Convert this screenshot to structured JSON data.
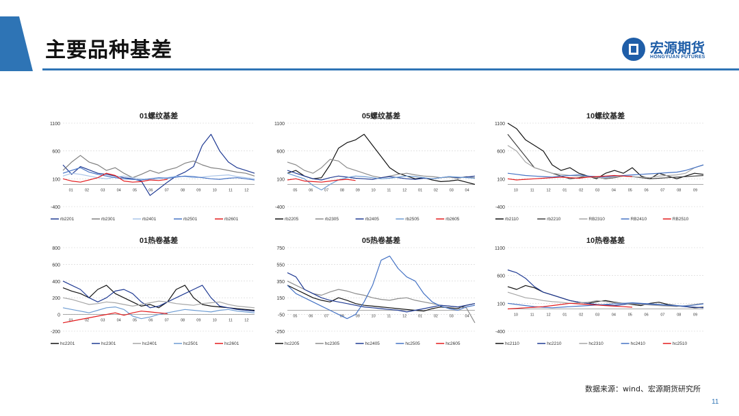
{
  "header": {
    "title": "主要品种基差",
    "logo_cn": "宏源期货",
    "logo_en": "HONGYUAN FUTURES",
    "accent_color": "#2e74b5"
  },
  "footer": {
    "source": "数据来源：wind、宏源期货研究所",
    "page_number": "11"
  },
  "chart_data": [
    {
      "type": "line",
      "title": "01螺纹基差",
      "ylim": [
        -400,
        1100
      ],
      "yticks": [
        1100,
        600,
        100,
        -400
      ],
      "xticks": [
        "01",
        "02",
        "03",
        "04",
        "05",
        "06",
        "07",
        "08",
        "09",
        "10",
        "11",
        "12"
      ],
      "series": [
        {
          "name": "rb2201",
          "color": "#1f3a93",
          "values": [
            350,
            180,
            320,
            260,
            200,
            180,
            150,
            120,
            100,
            60,
            -200,
            -80,
            40,
            150,
            220,
            320,
            700,
            900,
            600,
            400,
            300,
            250,
            200
          ]
        },
        {
          "name": "rb2301",
          "color": "#7f7f7f",
          "values": [
            250,
            400,
            520,
            400,
            350,
            250,
            300,
            200,
            120,
            180,
            250,
            200,
            260,
            300,
            380,
            420,
            350,
            300,
            280,
            250,
            220,
            200,
            150
          ]
        },
        {
          "name": "rb2401",
          "color": "#a9c4e8",
          "values": [
            150,
            200,
            180,
            150,
            120,
            100,
            130,
            150,
            120,
            100,
            80,
            100,
            120,
            150,
            140,
            120,
            130,
            150,
            160,
            170,
            140,
            120,
            100
          ]
        },
        {
          "name": "rb2501",
          "color": "#4472c4",
          "values": [
            200,
            250,
            300,
            220,
            180,
            150,
            120,
            100,
            90,
            80,
            100,
            120,
            110,
            130,
            150,
            140,
            120,
            100,
            90,
            110,
            120,
            100,
            80
          ]
        },
        {
          "name": "rb2601",
          "color": "#e31a1c",
          "values": [
            100,
            60,
            40,
            80,
            120,
            200,
            160,
            60,
            40,
            50,
            80,
            70,
            90
          ]
        }
      ]
    },
    {
      "type": "line",
      "title": "05螺纹基差",
      "ylim": [
        -400,
        1100
      ],
      "yticks": [
        1100,
        600,
        100,
        -400
      ],
      "xticks": [
        "05",
        "06",
        "07",
        "08",
        "09",
        "10",
        "11",
        "12",
        "01",
        "02",
        "03",
        "04"
      ],
      "series": [
        {
          "name": "rb2205",
          "color": "#111111",
          "values": [
            200,
            250,
            150,
            100,
            120,
            350,
            650,
            750,
            800,
            900,
            700,
            500,
            300,
            200,
            150,
            100,
            120,
            80,
            50,
            60,
            80,
            40,
            0
          ]
        },
        {
          "name": "rb2305",
          "color": "#8c8c8c",
          "values": [
            400,
            350,
            250,
            200,
            300,
            450,
            420,
            300,
            250,
            200,
            150,
            120,
            150,
            180,
            200,
            170,
            150,
            140,
            120,
            130,
            110,
            140,
            120
          ]
        },
        {
          "name": "rb2405",
          "color": "#1f3a93",
          "values": [
            250,
            200,
            150,
            100,
            80,
            120,
            150,
            130,
            110,
            100,
            90,
            120,
            140,
            120,
            100,
            90,
            110,
            100,
            120,
            140,
            120,
            130,
            150
          ]
        },
        {
          "name": "rb2505",
          "color": "#6c9bd2",
          "values": [
            200,
            150,
            100,
            -20,
            -100,
            0,
            80,
            120,
            150,
            140,
            120,
            100,
            110,
            130,
            150,
            140,
            120,
            100,
            120,
            140,
            130,
            120,
            110
          ]
        },
        {
          "name": "rb2605",
          "color": "#e31a1c",
          "values": [
            80,
            100,
            60,
            50,
            40,
            60,
            80,
            90,
            70
          ]
        }
      ]
    },
    {
      "type": "line",
      "title": "10螺纹基差",
      "ylim": [
        -400,
        1100
      ],
      "yticks": [
        1100,
        600,
        100,
        -400
      ],
      "xticks": [
        "10",
        "11",
        "12",
        "01",
        "02",
        "03",
        "04",
        "05",
        "06",
        "07",
        "08",
        "09"
      ],
      "series": [
        {
          "name": "rb2110",
          "color": "#111111",
          "values": [
            1100,
            1000,
            800,
            700,
            600,
            350,
            250,
            300,
            200,
            150,
            100,
            200,
            250,
            200,
            300,
            150,
            100,
            200,
            150,
            100,
            150,
            200,
            180
          ]
        },
        {
          "name": "rb2210",
          "color": "#3f3f3f",
          "values": [
            900,
            700,
            500,
            300,
            250,
            200,
            150,
            100,
            120,
            150,
            130,
            100,
            120,
            150,
            140,
            120,
            100,
            110,
            120,
            130,
            140,
            150,
            160
          ]
        },
        {
          "name": "RB2310",
          "color": "#a6a6a6",
          "values": [
            700,
            600,
            400,
            300,
            250,
            200,
            180,
            160,
            150,
            140,
            120,
            110,
            130,
            150,
            140,
            130,
            120,
            150,
            160,
            170,
            200,
            300,
            350
          ]
        },
        {
          "name": "RB2410",
          "color": "#4472c4",
          "values": [
            200,
            180,
            160,
            150,
            140,
            130,
            150,
            160,
            170,
            150,
            140,
            130,
            150,
            160,
            170,
            180,
            190,
            200,
            210,
            220,
            250,
            300,
            350
          ]
        },
        {
          "name": "RB2510",
          "color": "#e31a1c",
          "values": [
            100,
            80,
            90,
            100,
            110,
            120,
            130,
            120,
            110,
            130,
            140,
            150,
            160,
            150,
            140
          ]
        }
      ]
    },
    {
      "type": "line",
      "title": "01热卷基差",
      "ylim": [
        -200,
        800
      ],
      "yticks": [
        800,
        600,
        400,
        200,
        0,
        -200
      ],
      "xticks": [
        "01",
        "02",
        "03",
        "04",
        "05",
        "06",
        "07",
        "08",
        "09",
        "10",
        "11",
        "12"
      ],
      "series": [
        {
          "name": "hc2201",
          "color": "#111111",
          "values": [
            320,
            280,
            250,
            200,
            300,
            350,
            250,
            200,
            150,
            100,
            120,
            80,
            150,
            300,
            350,
            200,
            120,
            100,
            90,
            80,
            70,
            60,
            50
          ]
        },
        {
          "name": "hc2301",
          "color": "#1f3a93",
          "values": [
            400,
            350,
            300,
            200,
            150,
            200,
            280,
            300,
            250,
            150,
            80,
            100,
            150,
            200,
            250,
            300,
            350,
            200,
            100,
            80,
            60,
            50,
            40
          ]
        },
        {
          "name": "hc2401",
          "color": "#a6a6a6",
          "values": [
            200,
            180,
            150,
            120,
            130,
            150,
            140,
            120,
            100,
            120,
            140,
            160,
            150,
            130,
            120,
            110,
            130,
            140,
            150,
            120,
            100,
            90,
            80
          ]
        },
        {
          "name": "hc2501",
          "color": "#6c9bd2",
          "values": [
            80,
            60,
            40,
            20,
            50,
            80,
            90,
            60,
            -20,
            -50,
            -30,
            0,
            20,
            40,
            60,
            50,
            40,
            30,
            50,
            60,
            40,
            30,
            20
          ]
        },
        {
          "name": "hc2601",
          "color": "#e31a1c",
          "values": [
            -100,
            -80,
            -60,
            -40,
            -20,
            0,
            20,
            -10,
            20,
            40,
            30,
            20,
            10
          ]
        }
      ]
    },
    {
      "type": "line",
      "title": "05热卷基差",
      "ylim": [
        -250,
        750
      ],
      "yticks": [
        750,
        550,
        350,
        150,
        -50,
        -250
      ],
      "xticks": [
        "05",
        "06",
        "07",
        "08",
        "09",
        "10",
        "11",
        "12",
        "01",
        "02",
        "03",
        "04"
      ],
      "series": [
        {
          "name": "hc2205",
          "color": "#111111",
          "values": [
            300,
            250,
            200,
            150,
            120,
            100,
            150,
            120,
            80,
            60,
            50,
            40,
            30,
            20,
            10,
            0,
            -10,
            20,
            40,
            30,
            20,
            60,
            80
          ]
        },
        {
          "name": "hc2305",
          "color": "#8c8c8c",
          "values": [
            350,
            300,
            250,
            200,
            180,
            220,
            250,
            230,
            200,
            180,
            150,
            130,
            120,
            140,
            150,
            120,
            100,
            80,
            60,
            50,
            40,
            30,
            -150
          ]
        },
        {
          "name": "hc2405",
          "color": "#1f3a93",
          "values": [
            450,
            400,
            250,
            200,
            150,
            120,
            100,
            80,
            60,
            40,
            30,
            20,
            10,
            0,
            -20,
            0,
            20,
            40,
            60,
            50,
            40,
            60,
            80
          ]
        },
        {
          "name": "hc2505",
          "color": "#4472c4",
          "values": [
            300,
            200,
            150,
            100,
            50,
            0,
            -50,
            -100,
            -50,
            100,
            300,
            600,
            650,
            500,
            400,
            350,
            200,
            100,
            50,
            20,
            0,
            40,
            60
          ]
        },
        {
          "name": "hc2605",
          "color": "#e31a1c",
          "values": []
        }
      ]
    },
    {
      "type": "line",
      "title": "10热卷基差",
      "ylim": [
        -400,
        1100
      ],
      "yticks": [
        1100,
        600,
        100,
        -400
      ],
      "xticks": [
        "10",
        "11",
        "12",
        "01",
        "02",
        "03",
        "04",
        "05",
        "06",
        "07",
        "08",
        "09"
      ],
      "series": [
        {
          "name": "hc2110",
          "color": "#111111",
          "values": [
            400,
            350,
            420,
            380,
            300,
            250,
            200,
            150,
            120,
            100,
            130,
            150,
            120,
            100,
            80,
            60,
            100,
            120,
            80,
            60,
            40,
            20,
            30
          ]
        },
        {
          "name": "hc2210",
          "color": "#1f3a93",
          "values": [
            700,
            650,
            550,
            400,
            300,
            250,
            200,
            150,
            120,
            100,
            80,
            70,
            60,
            80,
            100,
            90,
            80,
            70,
            60,
            50,
            40,
            30,
            20
          ]
        },
        {
          "name": "hc2310",
          "color": "#a6a6a6",
          "values": [
            300,
            250,
            200,
            180,
            150,
            130,
            120,
            100,
            110,
            120,
            150,
            130,
            110,
            100,
            90,
            80,
            70,
            60,
            50,
            40,
            60,
            80,
            100
          ]
        },
        {
          "name": "hc2410",
          "color": "#4472c4",
          "values": [
            100,
            80,
            60,
            40,
            30,
            20,
            30,
            40,
            50,
            60,
            70,
            80,
            90,
            100,
            110,
            100,
            90,
            80,
            70,
            60,
            50,
            70,
            90
          ]
        },
        {
          "name": "hc2510",
          "color": "#e31a1c",
          "values": [
            0,
            10,
            20,
            30,
            40,
            60,
            80,
            100,
            90,
            80,
            70,
            60,
            50,
            40,
            30
          ]
        }
      ]
    }
  ]
}
